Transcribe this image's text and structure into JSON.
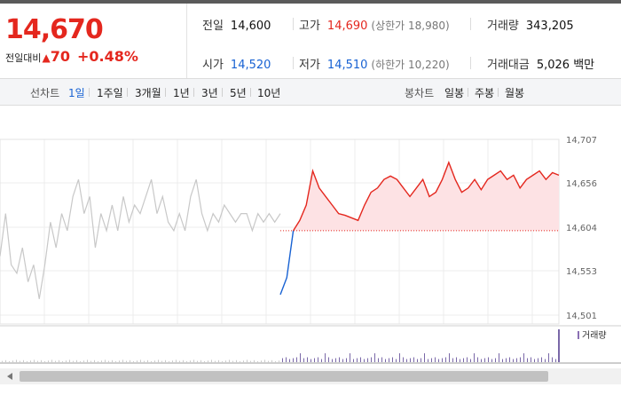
{
  "quote": {
    "price": "14,670",
    "change_label": "전일대비",
    "change_arrow": "▲",
    "change_value": "70",
    "change_rate": "+0.48%",
    "prev_close_label": "전일",
    "prev_close": "14,600",
    "high_label": "고가",
    "high": "14,690",
    "upper_limit": "(상한가 18,980)",
    "volume_label": "거래량",
    "volume": "343,205",
    "open_label": "시가",
    "open": "14,520",
    "low_label": "저가",
    "low": "14,510",
    "lower_limit": "(하한가 10,220)",
    "amount_label": "거래대금",
    "amount": "5,026 백만"
  },
  "tabs": {
    "line_label": "선차트",
    "line_periods": [
      "1일",
      "1주일",
      "3개월",
      "1년",
      "3년",
      "5년",
      "10년"
    ],
    "candle_label": "봉차트",
    "candle_periods": [
      "일봉",
      "주봉",
      "월봉"
    ]
  },
  "colors": {
    "up": "#e4271e",
    "down": "#1862d3",
    "prev_day_line": "#c8c8c8",
    "fill": "#fde2e4"
  },
  "chart_data": {
    "type": "line",
    "y_ticks": [
      14707,
      14656,
      14604,
      14553,
      14501
    ],
    "y_tick_labels": [
      "14,707",
      "14,656",
      "14,604",
      "14,553",
      "14,501"
    ],
    "ylim": [
      14501,
      14707
    ],
    "baseline": 14600,
    "volume_legend": "거래량",
    "grid": true,
    "series": [
      {
        "values": [
          14570,
          14620,
          14560,
          14550,
          14580,
          14540,
          14560,
          14520,
          14560,
          14610,
          14580,
          14620,
          14600,
          14640,
          14660,
          14620,
          14640,
          14580,
          14620,
          14600,
          14630,
          14600,
          14640,
          14610,
          14630,
          14620,
          14640,
          14660,
          14620,
          14640,
          14610,
          14600,
          14620,
          14600,
          14640,
          14660,
          14620,
          14600,
          14620,
          14610,
          14630,
          14620,
          14610,
          14620,
          14620,
          14600,
          14620,
          14610,
          14620,
          14610,
          14620
        ]
      },
      {
        "values": [
          14525,
          14545,
          14600,
          14612,
          14630,
          14670,
          14650,
          14640,
          14630,
          14620,
          14618,
          14615,
          14612,
          14630,
          14645,
          14650,
          14660,
          14664,
          14660,
          14650,
          14640,
          14650,
          14660,
          14640,
          14645,
          14660,
          14680,
          14660,
          14645,
          14650,
          14660,
          14648,
          14660,
          14665,
          14670,
          14660,
          14665,
          14650,
          14660,
          14665,
          14670,
          14660,
          14668,
          14665
        ]
      }
    ]
  }
}
